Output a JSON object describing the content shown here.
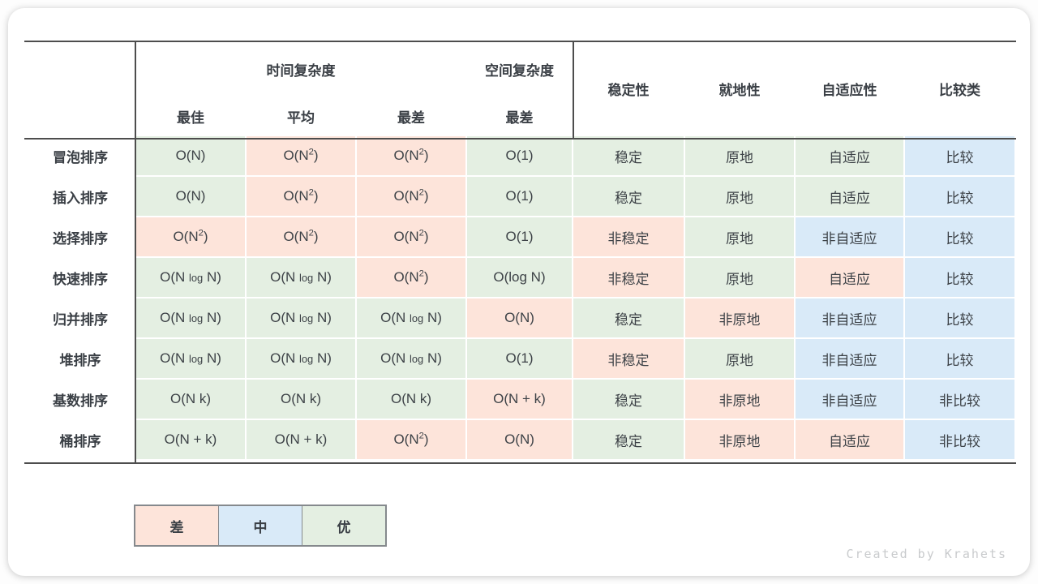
{
  "credit": "Created by Krahets",
  "colors": {
    "good": "#e4efe2",
    "mid": "#d9eaf8",
    "bad": "#fde4da",
    "rule": "#4d4d4d"
  },
  "chart_data": {
    "type": "table",
    "header": {
      "time_group": "时间复杂度",
      "space_group": "空间复杂度",
      "time_subs": [
        "最佳",
        "平均",
        "最差"
      ],
      "space_sub": "最差",
      "attrs": [
        "稳定性",
        "就地性",
        "自适应性",
        "比较类"
      ]
    },
    "rows": [
      {
        "name": "冒泡排序",
        "cells": [
          {
            "text": "O(N)",
            "level": "good"
          },
          {
            "text": "O(N^2)",
            "level": "bad"
          },
          {
            "text": "O(N^2)",
            "level": "bad"
          },
          {
            "text": "O(1)",
            "level": "good"
          },
          {
            "text": "稳定",
            "level": "good"
          },
          {
            "text": "原地",
            "level": "good"
          },
          {
            "text": "自适应",
            "level": "good"
          },
          {
            "text": "比较",
            "level": "mid"
          }
        ]
      },
      {
        "name": "插入排序",
        "cells": [
          {
            "text": "O(N)",
            "level": "good"
          },
          {
            "text": "O(N^2)",
            "level": "bad"
          },
          {
            "text": "O(N^2)",
            "level": "bad"
          },
          {
            "text": "O(1)",
            "level": "good"
          },
          {
            "text": "稳定",
            "level": "good"
          },
          {
            "text": "原地",
            "level": "good"
          },
          {
            "text": "自适应",
            "level": "good"
          },
          {
            "text": "比较",
            "level": "mid"
          }
        ]
      },
      {
        "name": "选择排序",
        "cells": [
          {
            "text": "O(N^2)",
            "level": "bad"
          },
          {
            "text": "O(N^2)",
            "level": "bad"
          },
          {
            "text": "O(N^2)",
            "level": "bad"
          },
          {
            "text": "O(1)",
            "level": "good"
          },
          {
            "text": "非稳定",
            "level": "bad"
          },
          {
            "text": "原地",
            "level": "good"
          },
          {
            "text": "非自适应",
            "level": "mid"
          },
          {
            "text": "比较",
            "level": "mid"
          }
        ]
      },
      {
        "name": "快速排序",
        "cells": [
          {
            "text": "O(N log N)",
            "level": "good"
          },
          {
            "text": "O(N log N)",
            "level": "good"
          },
          {
            "text": "O(N^2)",
            "level": "bad"
          },
          {
            "text": "O(log N)",
            "level": "good"
          },
          {
            "text": "非稳定",
            "level": "bad"
          },
          {
            "text": "原地",
            "level": "good"
          },
          {
            "text": "自适应",
            "level": "bad"
          },
          {
            "text": "比较",
            "level": "mid"
          }
        ]
      },
      {
        "name": "归并排序",
        "cells": [
          {
            "text": "O(N log N)",
            "level": "good"
          },
          {
            "text": "O(N log N)",
            "level": "good"
          },
          {
            "text": "O(N log N)",
            "level": "good"
          },
          {
            "text": "O(N)",
            "level": "bad"
          },
          {
            "text": "稳定",
            "level": "good"
          },
          {
            "text": "非原地",
            "level": "bad"
          },
          {
            "text": "非自适应",
            "level": "mid"
          },
          {
            "text": "比较",
            "level": "mid"
          }
        ]
      },
      {
        "name": "堆排序",
        "cells": [
          {
            "text": "O(N log N)",
            "level": "good"
          },
          {
            "text": "O(N log N)",
            "level": "good"
          },
          {
            "text": "O(N log N)",
            "level": "good"
          },
          {
            "text": "O(1)",
            "level": "good"
          },
          {
            "text": "非稳定",
            "level": "bad"
          },
          {
            "text": "原地",
            "level": "good"
          },
          {
            "text": "非自适应",
            "level": "mid"
          },
          {
            "text": "比较",
            "level": "mid"
          }
        ]
      },
      {
        "name": "基数排序",
        "cells": [
          {
            "text": "O(N k)",
            "level": "good"
          },
          {
            "text": "O(N k)",
            "level": "good"
          },
          {
            "text": "O(N k)",
            "level": "good"
          },
          {
            "text": "O(N + k)",
            "level": "bad"
          },
          {
            "text": "稳定",
            "level": "good"
          },
          {
            "text": "非原地",
            "level": "bad"
          },
          {
            "text": "非自适应",
            "level": "mid"
          },
          {
            "text": "非比较",
            "level": "mid"
          }
        ]
      },
      {
        "name": "桶排序",
        "cells": [
          {
            "text": "O(N + k)",
            "level": "good"
          },
          {
            "text": "O(N + k)",
            "level": "good"
          },
          {
            "text": "O(N^2)",
            "level": "bad"
          },
          {
            "text": "O(N)",
            "level": "bad"
          },
          {
            "text": "稳定",
            "level": "good"
          },
          {
            "text": "非原地",
            "level": "bad"
          },
          {
            "text": "自适应",
            "level": "bad"
          },
          {
            "text": "非比较",
            "level": "mid"
          }
        ]
      }
    ],
    "legend": [
      {
        "label": "差",
        "level": "bad"
      },
      {
        "label": "中",
        "level": "mid"
      },
      {
        "label": "优",
        "level": "good"
      }
    ]
  }
}
